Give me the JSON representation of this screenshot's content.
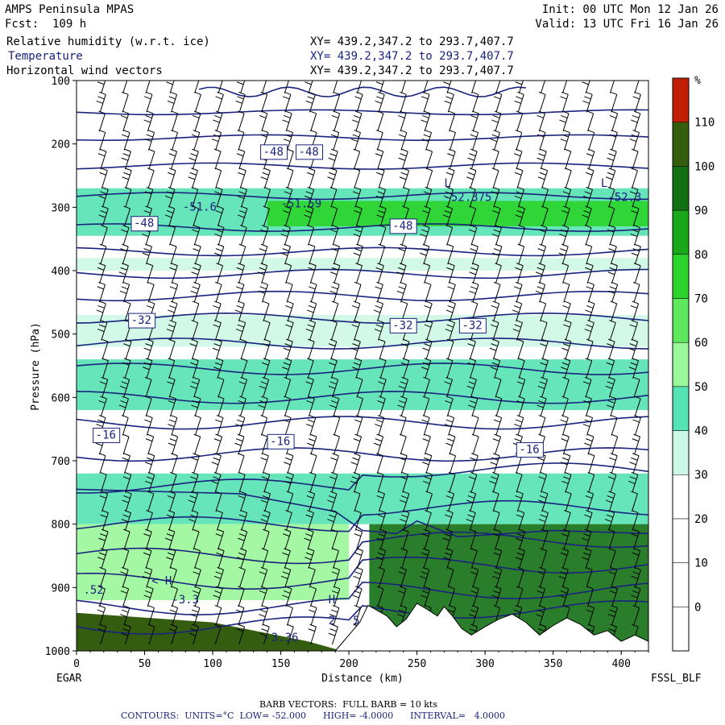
{
  "header": {
    "left_line1": "AMPS Peninsula MPAS",
    "left_line2": "Fcst:  109 h",
    "right_line1": "Init: 00 UTC Mon 12 Jan 26",
    "right_line2": "Valid: 13 UTC Fri 16 Jan 26",
    "fields": [
      {
        "name": "Relative humidity (w.r.t. ice)",
        "xy": "XY= 439.2,347.2 to 293.7,407.7",
        "color": "#000000"
      },
      {
        "name": "Temperature",
        "xy": "XY= 439.2,347.2 to 293.7,407.7",
        "color": "#1a237e"
      },
      {
        "name": "Horizontal wind vectors",
        "xy": "XY= 439.2,347.2 to 293.7,407.7",
        "color": "#000000"
      }
    ]
  },
  "footer": {
    "barb": "BARB VECTORS:  FULL BARB = 10 kts",
    "contours": "CONTOURS:  UNITS=°C  LOW= -52.000      HIGH= -4.0000      INTERVAL=   4.0000"
  },
  "chart_data": {
    "type": "heatmap",
    "xlabel": "Distance (km)",
    "ylabel": "Pressure (hPa)",
    "x_left_label": "EGAR",
    "x_right_label": "FSSL_BLF",
    "xlim": [
      0,
      420
    ],
    "ylim": [
      1000,
      100
    ],
    "x_ticks": [
      0,
      50,
      100,
      150,
      200,
      250,
      300,
      350,
      400
    ],
    "y_ticks": [
      100,
      200,
      300,
      400,
      500,
      600,
      700,
      800,
      900,
      1000
    ],
    "colorbar": {
      "unit": "%",
      "levels": [
        -10,
        0,
        10,
        20,
        30,
        40,
        50,
        60,
        70,
        80,
        90,
        100,
        110,
        120
      ],
      "labels": [
        0,
        10,
        20,
        30,
        40,
        50,
        60,
        70,
        80,
        90,
        100,
        110
      ],
      "colors": [
        "#ffffff",
        "#ffffff",
        "#ffffff",
        "#ffffff",
        "#cdf7e6",
        "#55e2b4",
        "#9af79a",
        "#5de85d",
        "#2ad42a",
        "#1aa71a",
        "#136f13",
        "#345d10",
        "#c21e06"
      ]
    },
    "rh_bands": [
      {
        "p_top": 270,
        "p_bot": 345,
        "x0": 0,
        "x1": 420,
        "rh": 45
      },
      {
        "p_top": 290,
        "p_bot": 330,
        "x0": 140,
        "x1": 420,
        "rh": 75
      },
      {
        "p_top": 380,
        "p_bot": 400,
        "x0": 0,
        "x1": 420,
        "rh": 35
      },
      {
        "p_top": 470,
        "p_bot": 520,
        "x0": 0,
        "x1": 420,
        "rh": 35
      },
      {
        "p_top": 540,
        "p_bot": 620,
        "x0": 0,
        "x1": 420,
        "rh": 40
      },
      {
        "p_top": 720,
        "p_bot": 800,
        "x0": 0,
        "x1": 420,
        "rh": 45
      },
      {
        "p_top": 800,
        "p_bot": 920,
        "x0": 0,
        "x1": 200,
        "rh": 55
      },
      {
        "p_top": 800,
        "p_bot": 990,
        "x0": 215,
        "x1": 420,
        "rh": 90
      }
    ],
    "temperature_contours": [
      -52,
      -48,
      -44,
      -40,
      -36,
      -32,
      -28,
      -24,
      -20,
      -16,
      -12,
      -8,
      -4
    ],
    "contour_labels": [
      {
        "x": 137,
        "p": 218,
        "text": "-48"
      },
      {
        "x": 163,
        "p": 218,
        "text": "-48"
      },
      {
        "x": 42,
        "p": 331,
        "text": "-48"
      },
      {
        "x": 232,
        "p": 335,
        "text": "-48"
      },
      {
        "x": 40,
        "p": 484,
        "text": "-32"
      },
      {
        "x": 232,
        "p": 492,
        "text": "-32"
      },
      {
        "x": 283,
        "p": 492,
        "text": "-32"
      },
      {
        "x": 14,
        "p": 665,
        "text": "-16"
      },
      {
        "x": 142,
        "p": 675,
        "text": "-16"
      },
      {
        "x": 325,
        "p": 688,
        "text": "-16"
      }
    ],
    "extrema": [
      {
        "x": 78,
        "p": 305,
        "text": "-51.6"
      },
      {
        "x": 150,
        "p": 300,
        "text": "-51.59"
      },
      {
        "x": 270,
        "p": 290,
        "text": "-52.375"
      },
      {
        "x": 390,
        "p": 290,
        "text": "-52.3"
      },
      {
        "x": 270,
        "p": 268,
        "text": "L"
      },
      {
        "x": 385,
        "p": 268,
        "text": "L"
      },
      {
        "x": 55,
        "p": 895,
        "text": "< H"
      },
      {
        "x": 70,
        "p": 925,
        "text": "-3.3"
      },
      {
        "x": 5,
        "p": 910,
        "text": ".52"
      },
      {
        "x": 185,
        "p": 925,
        "text": "H"
      },
      {
        "x": 185,
        "p": 958,
        "text": "2"
      },
      {
        "x": 203,
        "p": 958,
        "text": "5"
      },
      {
        "x": 138,
        "p": 985,
        "text": "-3.36"
      }
    ],
    "terrain_profile": [
      [
        190,
        1000
      ],
      [
        200,
        975
      ],
      [
        208,
        955
      ],
      [
        214,
        928
      ],
      [
        220,
        935
      ],
      [
        228,
        945
      ],
      [
        235,
        962
      ],
      [
        242,
        950
      ],
      [
        250,
        925
      ],
      [
        258,
        935
      ],
      [
        265,
        945
      ],
      [
        270,
        930
      ],
      [
        276,
        945
      ],
      [
        283,
        965
      ],
      [
        290,
        975
      ],
      [
        300,
        962
      ],
      [
        310,
        950
      ],
      [
        320,
        942
      ],
      [
        330,
        955
      ],
      [
        340,
        975
      ],
      [
        350,
        960
      ],
      [
        360,
        948
      ],
      [
        370,
        958
      ],
      [
        380,
        975
      ],
      [
        390,
        968
      ],
      [
        400,
        985
      ],
      [
        410,
        975
      ],
      [
        420,
        985
      ],
      [
        420,
        1000
      ]
    ],
    "wind_columns_km": [
      18,
      35,
      52,
      69,
      86,
      103,
      120,
      137,
      154,
      171,
      188,
      205,
      222,
      239,
      256,
      273,
      290,
      307,
      324,
      341,
      358,
      375,
      392,
      409
    ]
  }
}
